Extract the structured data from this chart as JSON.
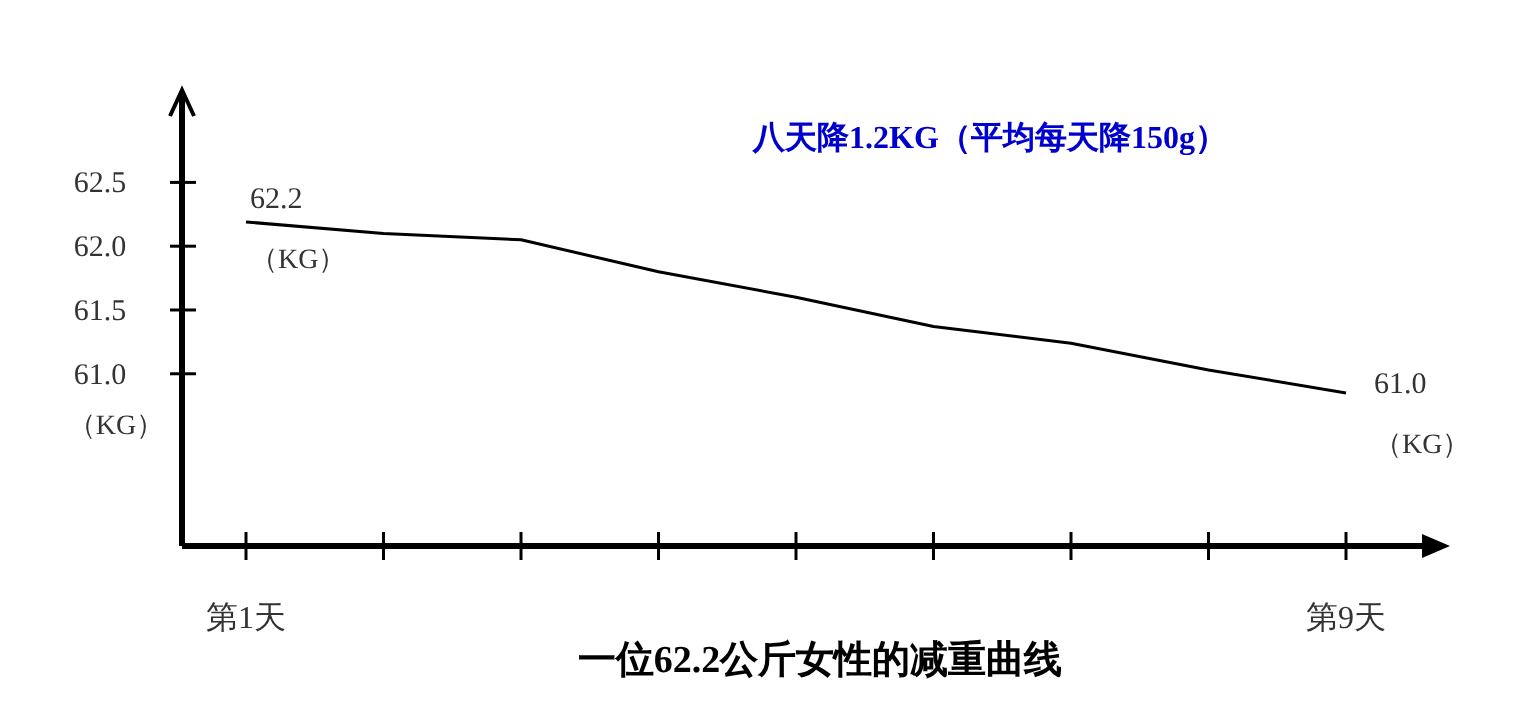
{
  "chart_data": {
    "type": "line",
    "title": "一位62.2公斤女性的减重曲线",
    "subtitle": "八天降1.2KG（平均每天降150g）",
    "ylabel": "（KG）",
    "categories": [
      "第1天",
      null,
      null,
      null,
      null,
      null,
      null,
      null,
      "第9天"
    ],
    "values": [
      62.19,
      62.1,
      62.05,
      61.8,
      61.6,
      61.37,
      61.24,
      61.03,
      60.85
    ],
    "color": "#000000",
    "ylim": [
      59.65,
      63.24
    ],
    "yticks": [
      {
        "value": 62.5,
        "label": "62.5"
      },
      {
        "value": 62.0,
        "label": "62.0"
      },
      {
        "value": 61.5,
        "label": "61.5"
      },
      {
        "value": 61.0,
        "label": "61.0"
      }
    ],
    "annotations": [
      {
        "text": "62.2",
        "x": "第1天",
        "y": 62.19
      },
      {
        "text": "（KG）",
        "x": "第1天",
        "y": 62.19
      },
      {
        "text": "61.0",
        "x": "第9天",
        "y": 60.85
      },
      {
        "text": "（KG）",
        "x": "第9天",
        "y": 60.85
      }
    ]
  }
}
